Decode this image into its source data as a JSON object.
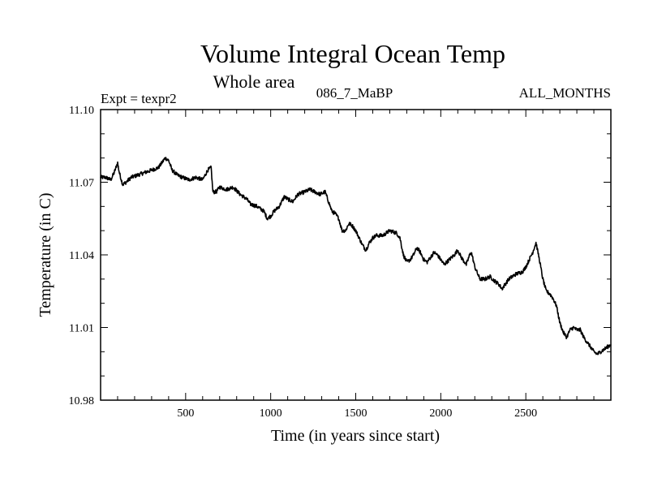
{
  "chart_data": {
    "type": "line",
    "title": "Volume Integral Ocean Temp",
    "subtitle": "Whole area",
    "expt_label": "Expt = texpr2",
    "run_label": "086_7_MaBP",
    "months_label": "ALL_MONTHS",
    "xlabel": "Time (in years since start)",
    "ylabel": "Temperature (in C)",
    "xlim": [
      0,
      3000
    ],
    "ylim": [
      10.98,
      11.1
    ],
    "xticks": [
      500,
      1000,
      1500,
      2000,
      2500
    ],
    "xtick_labels": [
      "500",
      "1000",
      "1500",
      "2000",
      "2500"
    ],
    "yticks": [
      10.98,
      11.01,
      11.04,
      11.07,
      11.1
    ],
    "ytick_labels": [
      "10.98",
      "11.01",
      "11.04",
      "11.07",
      "11.10"
    ],
    "grid": false,
    "series": [
      {
        "color": "#000000",
        "x": [
          0,
          30,
          60,
          80,
          100,
          110,
          130,
          150,
          180,
          220,
          260,
          300,
          340,
          360,
          380,
          400,
          420,
          450,
          480,
          520,
          560,
          600,
          630,
          650,
          660,
          680,
          700,
          740,
          780,
          820,
          860,
          880,
          920,
          960,
          980,
          1000,
          1020,
          1050,
          1080,
          1100,
          1130,
          1160,
          1200,
          1230,
          1260,
          1290,
          1320,
          1340,
          1360,
          1380,
          1400,
          1420,
          1440,
          1460,
          1480,
          1500,
          1520,
          1540,
          1560,
          1580,
          1600,
          1620,
          1660,
          1700,
          1740,
          1760,
          1780,
          1800,
          1820,
          1840,
          1860,
          1880,
          1900,
          1920,
          1940,
          1960,
          1980,
          2000,
          2020,
          2050,
          2080,
          2100,
          2120,
          2150,
          2170,
          2180,
          2200,
          2230,
          2260,
          2290,
          2320,
          2340,
          2360,
          2380,
          2400,
          2440,
          2480,
          2500,
          2520,
          2540,
          2560,
          2580,
          2600,
          2620,
          2640,
          2660,
          2680,
          2700,
          2720,
          2740,
          2760,
          2780,
          2800,
          2820,
          2840,
          2860,
          2880,
          2900,
          2920,
          2940,
          2960,
          2980,
          3000
        ],
        "values": [
          11.072,
          11.072,
          11.071,
          11.074,
          11.078,
          11.074,
          11.069,
          11.07,
          11.072,
          11.073,
          11.074,
          11.075,
          11.076,
          11.078,
          11.08,
          11.079,
          11.075,
          11.073,
          11.072,
          11.071,
          11.072,
          11.071,
          11.075,
          11.076,
          11.066,
          11.066,
          11.068,
          11.067,
          11.068,
          11.065,
          11.063,
          11.061,
          11.06,
          11.058,
          11.055,
          11.056,
          11.058,
          11.06,
          11.064,
          11.063,
          11.062,
          11.065,
          11.066,
          11.067,
          11.066,
          11.065,
          11.066,
          11.062,
          11.058,
          11.057,
          11.055,
          11.05,
          11.05,
          11.053,
          11.052,
          11.05,
          11.047,
          11.044,
          11.042,
          11.045,
          11.047,
          11.048,
          11.048,
          11.05,
          11.049,
          11.047,
          11.04,
          11.037,
          11.038,
          11.04,
          11.043,
          11.041,
          11.038,
          11.037,
          11.039,
          11.041,
          11.04,
          11.038,
          11.036,
          11.038,
          11.04,
          11.042,
          11.039,
          11.036,
          11.04,
          11.041,
          11.035,
          11.03,
          11.03,
          11.031,
          11.029,
          11.028,
          11.026,
          11.028,
          11.03,
          11.032,
          11.033,
          11.035,
          11.038,
          11.041,
          11.045,
          11.038,
          11.03,
          11.025,
          11.024,
          11.022,
          11.019,
          11.012,
          11.008,
          11.006,
          11.009,
          11.01,
          11.009,
          11.009,
          11.006,
          11.004,
          11.002,
          11.0,
          10.999,
          11.0,
          11.001,
          11.002,
          11.003
        ]
      }
    ]
  }
}
